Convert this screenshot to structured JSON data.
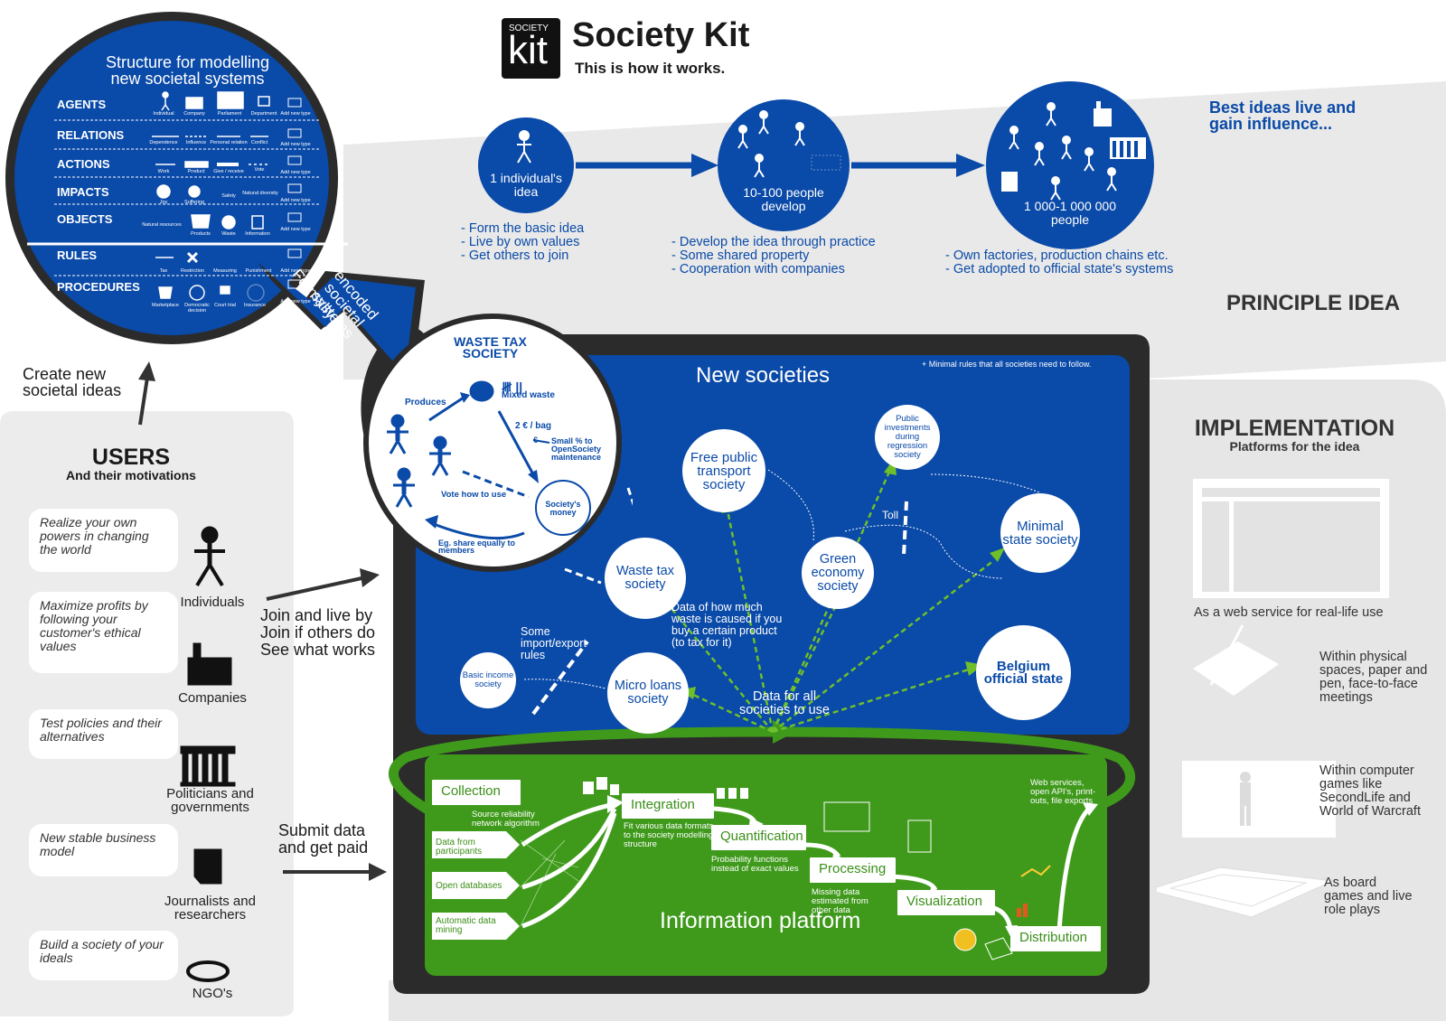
{
  "header": {
    "logo_top": "SOCIETY",
    "logo_bottom": "kit",
    "title": "Society Kit",
    "subtitle": "This is how it works."
  },
  "top_right_note": "Best ideas live and gain influence...",
  "stages": [
    {
      "label": "1 individual's idea",
      "bullets": [
        "- Form the basic idea",
        "- Live by own values",
        "- Get others to join"
      ]
    },
    {
      "label": "10-100 people develop",
      "bullets": [
        "- Develop the idea through practice",
        "- Some shared property",
        "- Cooperation with companies"
      ]
    },
    {
      "label": "1 000-1 000 000 people",
      "bullets": [
        "- Own factories, production chains etc.",
        "- Get adopted to official state's systems"
      ]
    }
  ],
  "principle": "PRINCIPLE IDEA",
  "structure": {
    "title_line1": "Structure for modelling",
    "title_line2": "new societal systems",
    "rows": [
      {
        "name": "AGENTS",
        "items": [
          "Individual",
          "Company",
          "Parliament",
          "Department",
          "Add new type"
        ]
      },
      {
        "name": "RELATIONS",
        "items": [
          "Dependence",
          "Influence",
          "Personal relation",
          "Conflict",
          "Add new type"
        ]
      },
      {
        "name": "ACTIONS",
        "items": [
          "Work",
          "Product",
          "Give / receive",
          "Vote",
          "Add new type"
        ]
      },
      {
        "name": "IMPACTS",
        "items": [
          "Joy",
          "Suffering",
          "Safety",
          "Natural diversity",
          "Add new type"
        ]
      },
      {
        "name": "OBJECTS",
        "items": [
          "Natural resources",
          "Products",
          "Waste",
          "Information",
          "Add new type"
        ]
      },
      {
        "name": "RULES",
        "items": [
          "Tax",
          "Restriction",
          "Measuring",
          "Punishment",
          "Add new type"
        ]
      },
      {
        "name": "PROCEDURES",
        "items": [
          "Marketplace",
          "Democratic decision",
          "Court trial",
          "Insurance",
          "Add new type"
        ]
      }
    ],
    "arrow_text": [
      "Formally",
      "encoded",
      "societal",
      "systems"
    ]
  },
  "create_ideas": [
    "Create new",
    "societal ideas"
  ],
  "users": {
    "title": "USERS",
    "subtitle": "And their motivations",
    "groups": [
      {
        "motivation": "Realize your own powers in changing the world",
        "label": "Individuals"
      },
      {
        "motivation": "Maximize profits by following your customer's ethical values",
        "label": "Companies"
      },
      {
        "motivation": "Test policies and their alternatives",
        "label": "Politicians and governments"
      },
      {
        "motivation": "New stable business model",
        "label": "Journalists and researchers"
      },
      {
        "motivation": "Build a society of your ideals",
        "label": "NGO's"
      }
    ]
  },
  "join_text": [
    "Join and live by",
    "Join if others do",
    "See what works"
  ],
  "submit_text": [
    "Submit data",
    "and get paid"
  ],
  "waste_tax": {
    "title": "WASTE TAX SOCIETY",
    "produces": "Produces",
    "mixed_waste": "Mixed waste",
    "per_bag": "2 € / bag",
    "euro": "€",
    "small_pct": "Small % to OpenSociety maintenance",
    "vote": "Vote how to use",
    "money": "Society's money",
    "share": "Eg. share equally to members",
    "tally": "𝍸 ||"
  },
  "new_societies": {
    "title": "New societies",
    "note": "+ Minimal rules that all societies need to follow.",
    "societies": [
      "Waste tax society",
      "Free public transport society",
      "Public investments during regression society",
      "Green economy society",
      "Minimal state society",
      "Basic income society",
      "Micro loans society",
      "Belgium official state"
    ],
    "toll": "Toll",
    "import_export": "Some import/export rules",
    "waste_data": "Data of how much waste is caused if you buy a certain product (to tax for it)",
    "data_all": "Data for all societies to use"
  },
  "platform": {
    "title": "Information platform",
    "steps": [
      "Collection",
      "Integration",
      "Quantification",
      "Processing",
      "Visualization",
      "Distribution"
    ],
    "sources": [
      "Data from participants",
      "Open databases",
      "Automatic data mining"
    ],
    "notes": {
      "source_reliability": "Source reliability network algorithm",
      "fit_formats": "Fit various data formats to the society modelling structure",
      "probability": "Probability functions instead of exact values",
      "missing_data": "Missing data estimated from other data",
      "web_services": "Web services, open API's, print-outs, file exports"
    }
  },
  "implementation": {
    "title": "IMPLEMENTATION",
    "subtitle": "Platforms for the idea",
    "items": [
      "As a web service for real-life use",
      "Within physical spaces, paper and pen, face-to-face meetings",
      "Within computer games like SecondLife and World of Warcraft",
      "As board games and live role plays"
    ]
  },
  "colors": {
    "blue": "#0a4aa8",
    "dark": "#2b2b2b",
    "green": "#3f9a1c",
    "grey": "#e6e6e6"
  }
}
